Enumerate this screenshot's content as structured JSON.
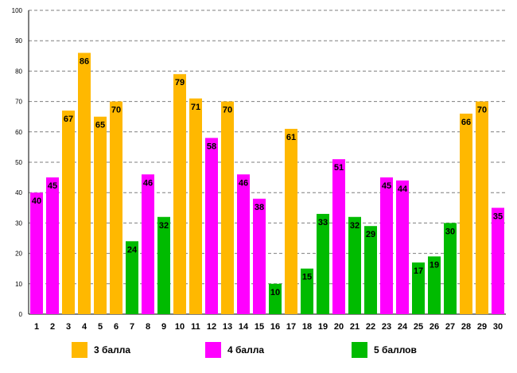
{
  "chart_data": {
    "type": "bar",
    "categories": [
      "1",
      "2",
      "3",
      "4",
      "5",
      "6",
      "7",
      "8",
      "9",
      "10",
      "11",
      "12",
      "13",
      "14",
      "15",
      "16",
      "17",
      "18",
      "19",
      "20",
      "21",
      "22",
      "23",
      "24",
      "25",
      "26",
      "27",
      "28",
      "29",
      "30"
    ],
    "values": [
      40,
      45,
      67,
      86,
      65,
      70,
      24,
      46,
      32,
      79,
      71,
      58,
      70,
      46,
      38,
      10,
      61,
      15,
      33,
      51,
      32,
      29,
      45,
      44,
      17,
      19,
      30,
      66,
      70,
      35
    ],
    "groups": [
      "4 балла",
      "4 балла",
      "3 балла",
      "3 балла",
      "3 балла",
      "3 балла",
      "5 баллов",
      "4 балла",
      "5 баллов",
      "3 балла",
      "3 балла",
      "4 балла",
      "3 балла",
      "4 балла",
      "4 балла",
      "5 баллов",
      "3 балла",
      "5 баллов",
      "5 баллов",
      "4 балла",
      "5 баллов",
      "5 баллов",
      "4 балла",
      "4 балла",
      "5 баллов",
      "5 баллов",
      "5 баллов",
      "3 балла",
      "3 балла",
      "4 балла"
    ],
    "ylim": [
      0,
      100
    ],
    "yticks": [
      "0",
      "10",
      "20",
      "30",
      "40",
      "50",
      "60",
      "70",
      "80",
      "90",
      "100"
    ],
    "gridlines": "dashed",
    "legend_position": "bottom",
    "legend": [
      {
        "name": "3 балла",
        "color": "#FFB800"
      },
      {
        "name": "4 балла",
        "color": "#FF00FF"
      },
      {
        "name": "5 баллов",
        "color": "#00BB00"
      }
    ],
    "title": "",
    "xlabel": "",
    "ylabel": ""
  }
}
